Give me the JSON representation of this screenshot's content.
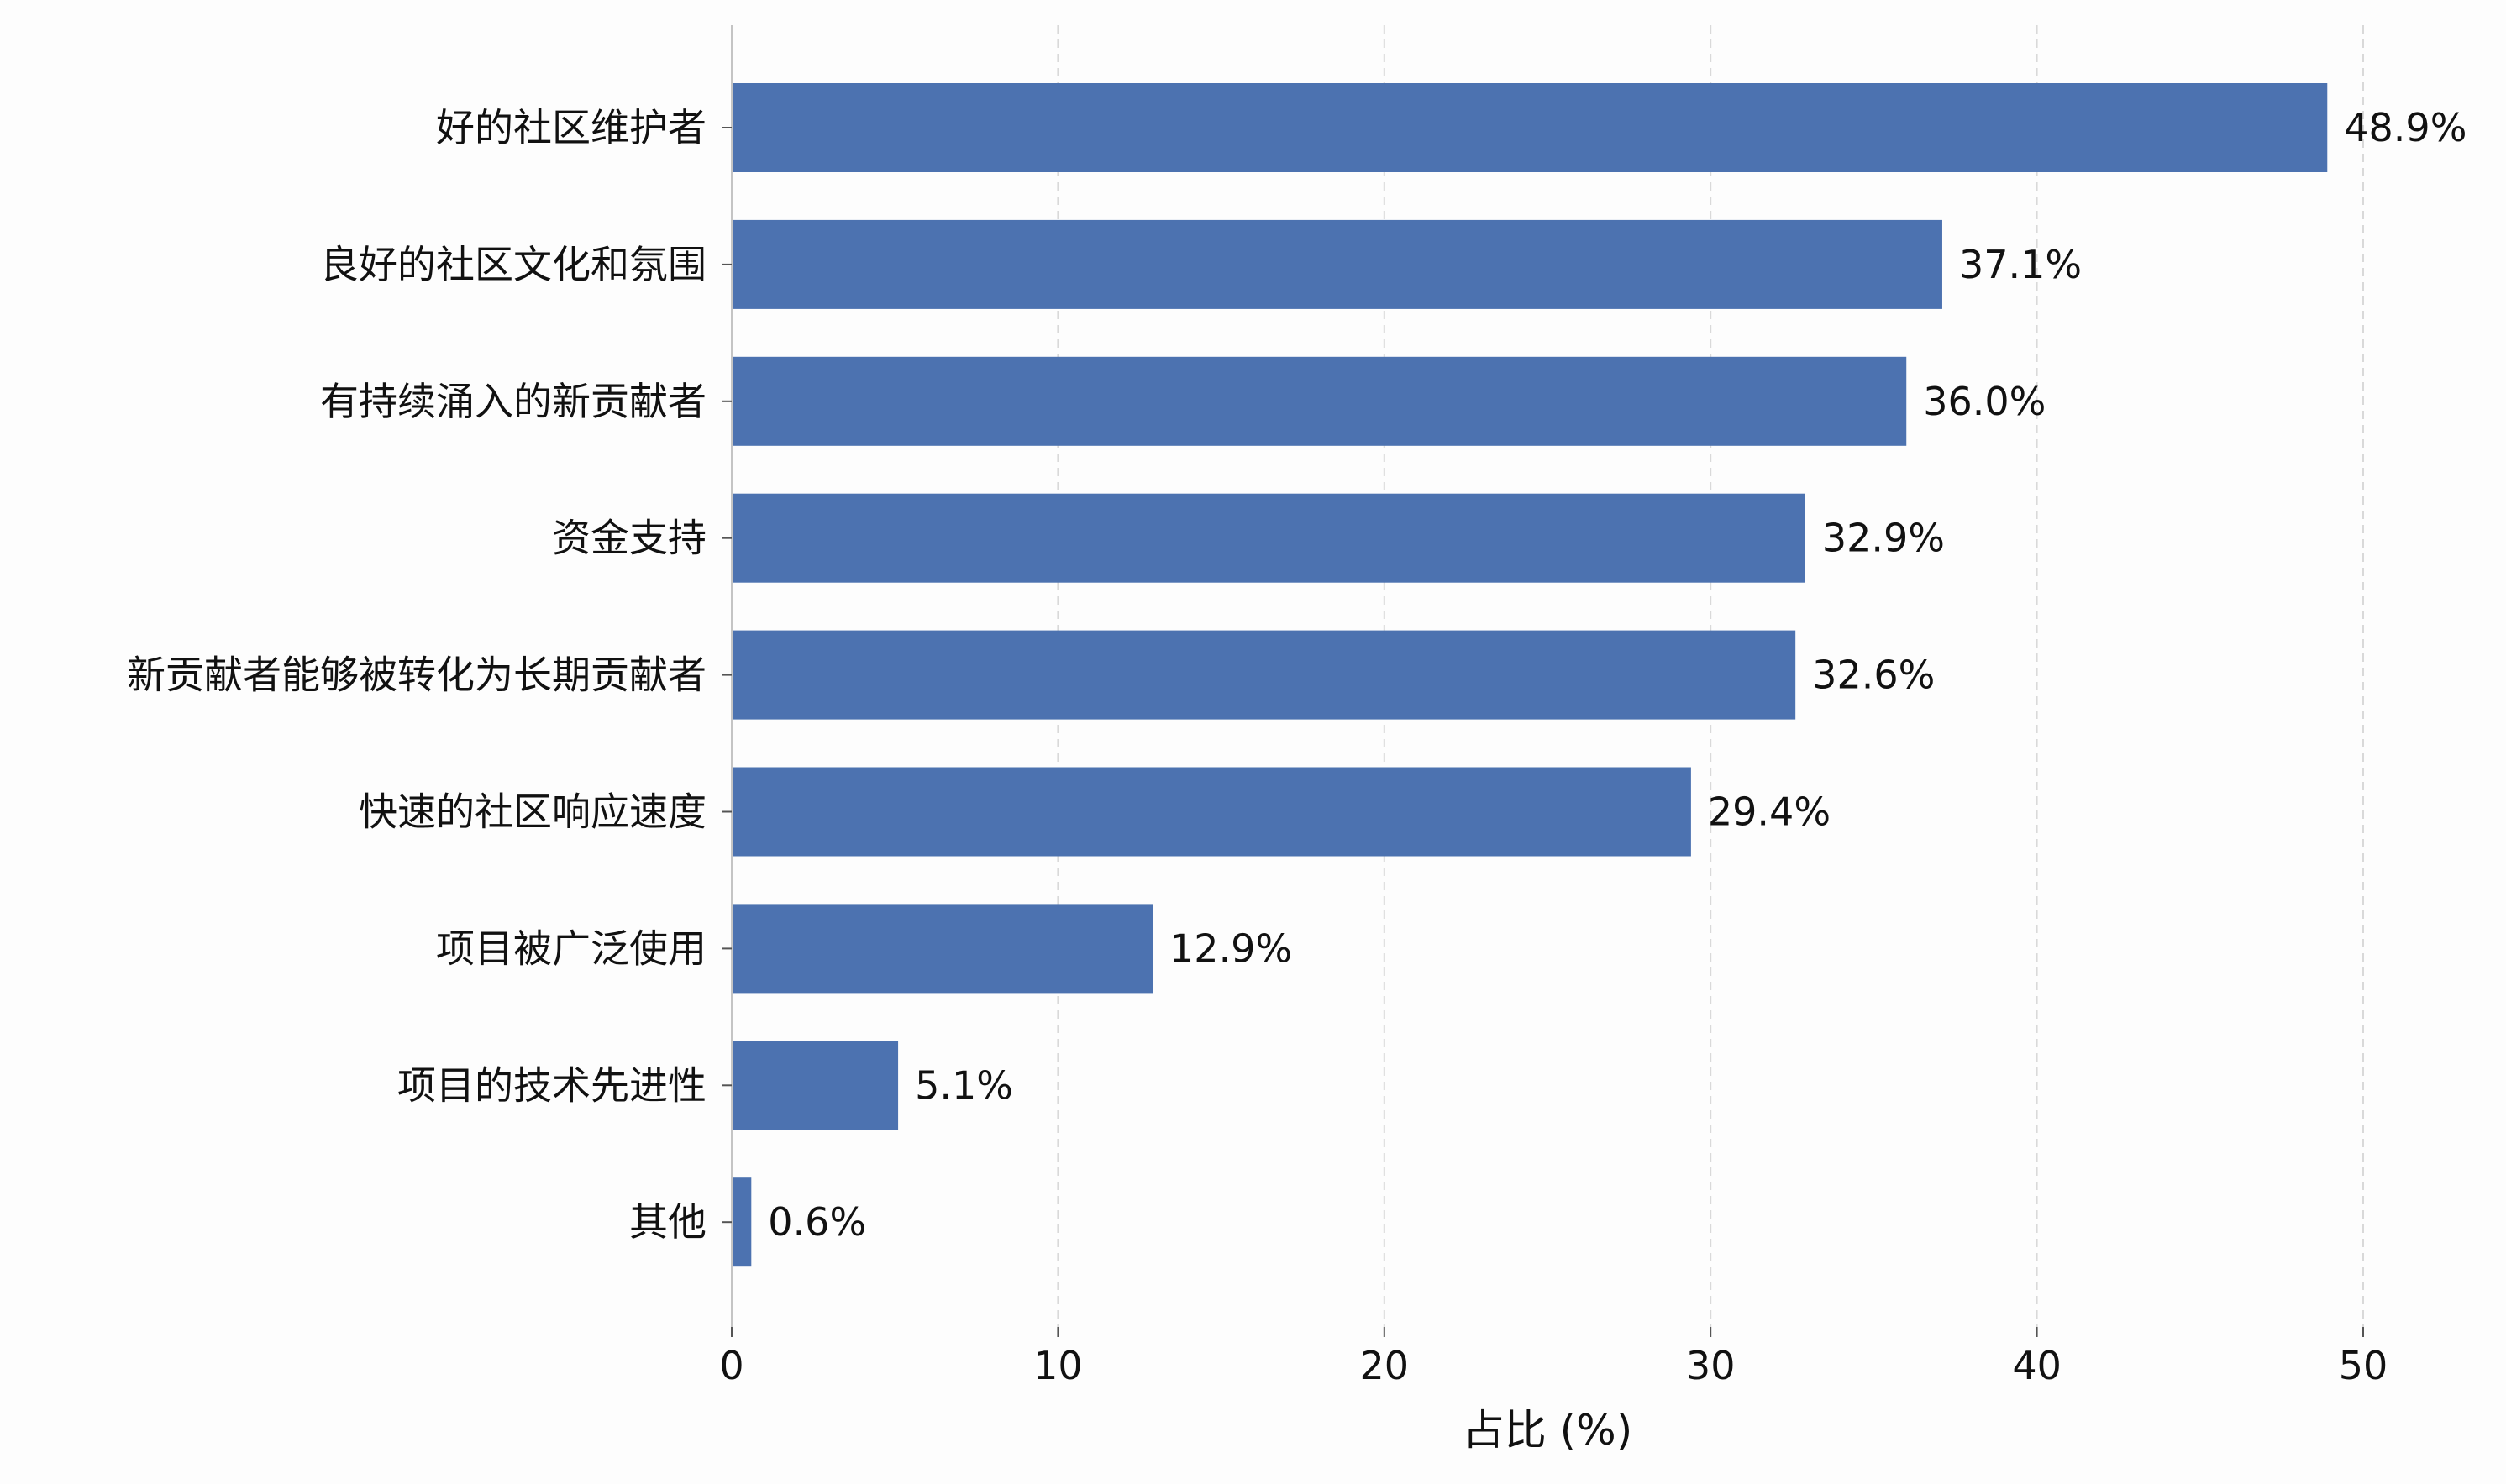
{
  "chart_data": {
    "type": "bar",
    "orientation": "horizontal",
    "categories": [
      "好的社区维护者",
      "良好的社区文化和氛围",
      "有持续涌入的新贡献者",
      "资金支持",
      "新贡献者能够被转化为长期贡献者",
      "快速的社区响应速度",
      "项目被广泛使用",
      "项目的技术先进性",
      "其他"
    ],
    "values": [
      48.9,
      37.1,
      36.0,
      32.9,
      32.6,
      29.4,
      12.9,
      5.1,
      0.6
    ],
    "value_labels": [
      "48.9%",
      "37.1%",
      "36.0%",
      "32.9%",
      "32.6%",
      "29.4%",
      "12.9%",
      "5.1%",
      "0.6%"
    ],
    "xlabel": "占比 (%)",
    "ylabel": "",
    "title": "",
    "xlim": [
      0,
      50
    ],
    "xticks": [
      0,
      10,
      20,
      30,
      40,
      50
    ],
    "grid": "vertical-dashed",
    "legend": "none",
    "bar_color": "#4c72b0"
  }
}
